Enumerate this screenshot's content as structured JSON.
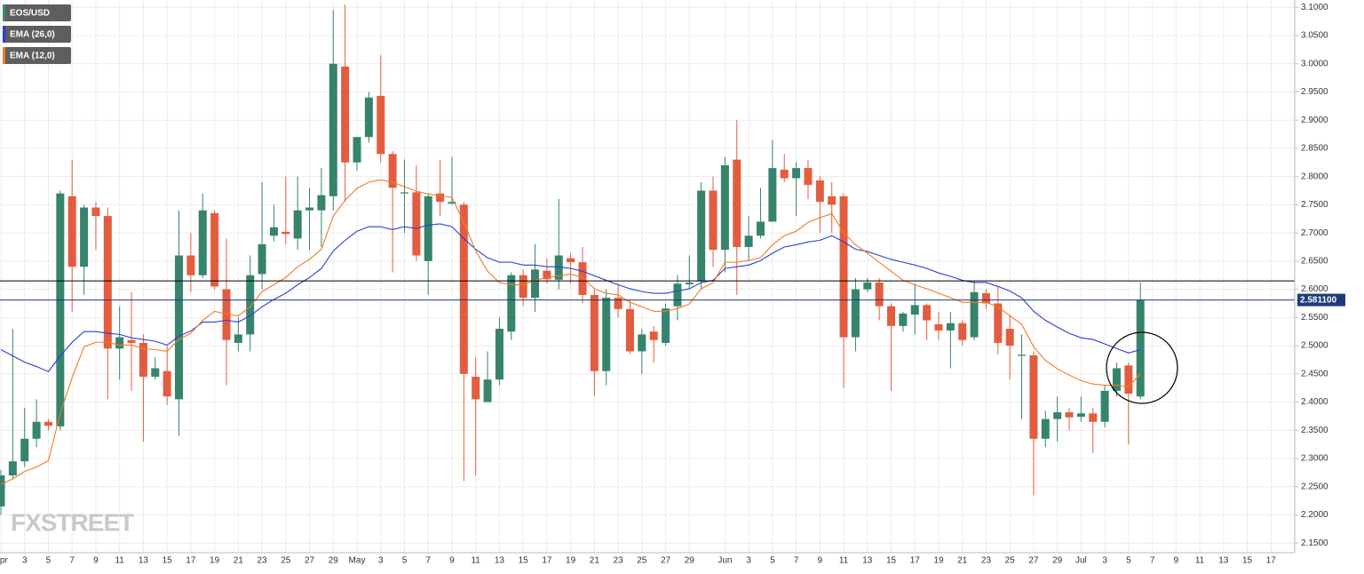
{
  "chart_data": {
    "type": "candlestick",
    "watermark": "FXSTREET",
    "categories": [
      "Apr",
      null,
      "3",
      null,
      "5",
      null,
      "7",
      null,
      "9",
      null,
      "11",
      null,
      "13",
      null,
      "15",
      null,
      "17",
      null,
      "19",
      null,
      "21",
      null,
      "23",
      null,
      "25",
      null,
      "27",
      null,
      "29",
      null,
      "May",
      null,
      "3",
      null,
      "5",
      null,
      "7",
      null,
      "9",
      null,
      "11",
      null,
      "13",
      null,
      "15",
      null,
      "17",
      null,
      "19",
      null,
      "21",
      null,
      "23",
      null,
      "25",
      null,
      "27",
      null,
      "29",
      null,
      null,
      "Jun",
      null,
      "3",
      null,
      "5",
      null,
      "7",
      null,
      "9",
      null,
      "11",
      null,
      "13",
      null,
      "15",
      null,
      "17",
      null,
      "19",
      null,
      "21",
      null,
      "23",
      null,
      "25",
      null,
      "27",
      null,
      "29",
      null,
      "Jul",
      null,
      "3",
      null,
      "5",
      null,
      "7",
      null,
      "9",
      null,
      "11",
      null,
      "13",
      null,
      "15",
      null,
      "17",
      null
    ],
    "candles": {
      "name": "EOS/USD",
      "color": "#3c8a72",
      "up_color": "#36846d",
      "down_color": "#e25d3f",
      "open": [
        2.215,
        2.27,
        2.295,
        2.335,
        2.365,
        2.357,
        2.765,
        2.64,
        2.745,
        2.73,
        2.495,
        2.51,
        2.505,
        2.445,
        2.455,
        2.405,
        2.66,
        2.625,
        2.735,
        2.6,
        2.505,
        2.52,
        2.627,
        2.695,
        2.702,
        2.69,
        2.74,
        2.74,
        2.765,
        2.995,
        2.825,
        2.87,
        2.943,
        2.84,
        2.77,
        2.772,
        2.65,
        2.77,
        2.752,
        2.75,
        2.445,
        2.4,
        2.44,
        2.525,
        2.625,
        2.585,
        2.633,
        2.617,
        2.655,
        2.648,
        2.59,
        2.455,
        2.585,
        2.565,
        2.49,
        2.525,
        2.505,
        2.57,
        2.609,
        2.615,
        2.775,
        2.67,
        2.83,
        2.675,
        2.695,
        2.72,
        2.812,
        2.797,
        2.815,
        2.793,
        2.765,
        2.765,
        2.515,
        2.6,
        2.612,
        2.57,
        2.535,
        2.555,
        2.572,
        2.538,
        2.527,
        2.54,
        2.515,
        2.593,
        2.575,
        2.53,
        2.482,
        2.483,
        2.335,
        2.37,
        2.382,
        2.374,
        2.38,
        2.365,
        2.42,
        2.465,
        2.41,
        null,
        null,
        null,
        null,
        null,
        null,
        null,
        null,
        null,
        null,
        null,
        null
      ],
      "high": [
        2.28,
        2.53,
        2.39,
        2.405,
        2.37,
        2.775,
        2.83,
        2.75,
        2.755,
        2.745,
        2.57,
        2.595,
        2.52,
        2.48,
        2.5,
        2.74,
        2.7,
        2.77,
        2.74,
        2.69,
        2.55,
        2.66,
        2.79,
        2.75,
        2.8,
        2.8,
        2.78,
        2.815,
        3.095,
        3.105,
        2.87,
        2.95,
        3.015,
        2.845,
        2.83,
        2.82,
        2.77,
        2.83,
        2.835,
        2.755,
        2.48,
        2.49,
        2.55,
        2.63,
        2.635,
        2.68,
        2.655,
        2.76,
        2.665,
        2.675,
        2.6,
        2.6,
        2.61,
        2.58,
        2.53,
        2.535,
        2.575,
        2.625,
        2.66,
        2.79,
        2.8,
        2.835,
        2.9,
        2.73,
        2.78,
        2.865,
        2.84,
        2.825,
        2.83,
        2.8,
        2.79,
        2.77,
        2.62,
        2.62,
        2.62,
        2.575,
        2.56,
        2.61,
        2.575,
        2.56,
        2.56,
        2.545,
        2.615,
        2.6,
        2.605,
        2.555,
        2.52,
        2.49,
        2.385,
        2.41,
        2.39,
        2.41,
        2.39,
        2.43,
        2.47,
        2.47,
        2.612,
        null,
        null,
        null,
        null,
        null,
        null,
        null,
        null,
        null,
        null,
        null,
        null
      ],
      "low": [
        2.2,
        2.265,
        2.285,
        2.32,
        2.35,
        2.35,
        2.56,
        2.59,
        2.67,
        2.405,
        2.44,
        2.42,
        2.33,
        2.44,
        2.395,
        2.34,
        2.595,
        2.62,
        2.6,
        2.43,
        2.49,
        2.49,
        2.6,
        2.685,
        2.68,
        2.67,
        2.67,
        2.675,
        2.74,
        2.755,
        2.81,
        2.86,
        2.825,
        2.63,
        2.7,
        2.65,
        2.59,
        2.73,
        2.75,
        2.26,
        2.27,
        2.4,
        2.43,
        2.51,
        2.57,
        2.56,
        2.61,
        2.6,
        2.61,
        2.575,
        2.41,
        2.43,
        2.55,
        2.485,
        2.45,
        2.47,
        2.5,
        2.545,
        2.6,
        2.6,
        2.64,
        2.63,
        2.59,
        2.65,
        2.69,
        2.72,
        2.79,
        2.73,
        2.76,
        2.7,
        2.7,
        2.425,
        2.49,
        2.595,
        2.545,
        2.42,
        2.525,
        2.52,
        2.51,
        2.51,
        2.46,
        2.5,
        2.51,
        2.565,
        2.485,
        2.44,
        2.37,
        2.235,
        2.32,
        2.33,
        2.35,
        2.365,
        2.31,
        2.355,
        2.41,
        2.325,
        2.405,
        null,
        null,
        null,
        null,
        null,
        null,
        null,
        null,
        null,
        null,
        null,
        null
      ],
      "close": [
        2.27,
        2.295,
        2.335,
        2.365,
        2.358,
        2.77,
        2.64,
        2.745,
        2.73,
        2.495,
        2.515,
        2.505,
        2.445,
        2.46,
        2.41,
        2.66,
        2.625,
        2.74,
        2.605,
        2.51,
        2.52,
        2.625,
        2.68,
        2.71,
        2.698,
        2.74,
        2.745,
        2.767,
        3.0,
        2.825,
        2.87,
        2.94,
        2.84,
        2.78,
        2.772,
        2.66,
        2.765,
        2.755,
        2.755,
        2.45,
        2.405,
        2.44,
        2.53,
        2.625,
        2.585,
        2.635,
        2.618,
        2.66,
        2.648,
        2.59,
        2.455,
        2.585,
        2.565,
        2.49,
        2.52,
        2.51,
        2.566,
        2.61,
        2.612,
        2.775,
        2.67,
        2.82,
        2.675,
        2.695,
        2.72,
        2.815,
        2.797,
        2.815,
        2.785,
        2.755,
        2.75,
        2.515,
        2.6,
        2.612,
        2.57,
        2.535,
        2.557,
        2.572,
        2.545,
        2.527,
        2.54,
        2.51,
        2.595,
        2.575,
        2.505,
        2.5,
        2.484,
        2.335,
        2.37,
        2.382,
        2.373,
        2.38,
        2.365,
        2.42,
        2.46,
        2.415,
        2.581,
        null,
        null,
        null,
        null,
        null,
        null,
        null,
        null,
        null,
        null,
        null,
        null
      ]
    },
    "series": [
      {
        "name": "EMA (26,0)",
        "color": "#2b3fd4",
        "values": [
          2.493,
          2.482,
          2.471,
          2.463,
          2.454,
          2.482,
          2.506,
          2.525,
          2.525,
          2.522,
          2.52,
          2.514,
          2.511,
          2.508,
          2.501,
          2.517,
          2.526,
          2.542,
          2.542,
          2.545,
          2.542,
          2.553,
          2.569,
          2.582,
          2.593,
          2.608,
          2.621,
          2.637,
          2.668,
          2.687,
          2.703,
          2.711,
          2.711,
          2.706,
          2.711,
          2.708,
          2.714,
          2.716,
          2.711,
          2.69,
          2.671,
          2.656,
          2.648,
          2.648,
          2.643,
          2.643,
          2.64,
          2.64,
          2.637,
          2.632,
          2.624,
          2.616,
          2.608,
          2.601,
          2.596,
          2.593,
          2.593,
          2.597,
          2.601,
          2.612,
          2.616,
          2.637,
          2.64,
          2.643,
          2.651,
          2.664,
          2.675,
          2.679,
          2.684,
          2.687,
          2.695,
          2.684,
          2.671,
          2.667,
          2.66,
          2.653,
          2.648,
          2.643,
          2.637,
          2.629,
          2.623,
          2.616,
          2.612,
          2.612,
          2.605,
          2.597,
          2.585,
          2.561,
          2.545,
          2.533,
          2.522,
          2.514,
          2.511,
          2.503,
          2.495,
          2.487,
          2.493,
          null,
          null,
          null,
          null,
          null,
          null,
          null,
          null,
          null,
          null,
          null,
          null
        ]
      },
      {
        "name": "EMA (12,0)",
        "color": "#f07a26",
        "values": [
          2.254,
          2.264,
          2.277,
          2.285,
          2.296,
          2.38,
          2.443,
          2.498,
          2.506,
          2.506,
          2.501,
          2.501,
          2.495,
          2.493,
          2.49,
          2.511,
          2.522,
          2.545,
          2.561,
          2.556,
          2.553,
          2.569,
          2.596,
          2.608,
          2.621,
          2.64,
          2.653,
          2.671,
          2.73,
          2.758,
          2.779,
          2.79,
          2.794,
          2.79,
          2.782,
          2.774,
          2.769,
          2.766,
          2.763,
          2.719,
          2.668,
          2.632,
          2.612,
          2.608,
          2.608,
          2.616,
          2.621,
          2.624,
          2.627,
          2.621,
          2.601,
          2.593,
          2.59,
          2.577,
          2.569,
          2.561,
          2.561,
          2.566,
          2.574,
          2.601,
          2.612,
          2.648,
          2.648,
          2.651,
          2.656,
          2.679,
          2.695,
          2.703,
          2.719,
          2.727,
          2.734,
          2.7,
          2.679,
          2.664,
          2.648,
          2.632,
          2.616,
          2.608,
          2.601,
          2.593,
          2.585,
          2.577,
          2.577,
          2.577,
          2.569,
          2.553,
          2.538,
          2.498,
          2.474,
          2.459,
          2.448,
          2.438,
          2.432,
          2.43,
          2.43,
          2.427,
          2.451,
          null,
          null,
          null,
          null,
          null,
          null,
          null,
          null,
          null,
          null,
          null,
          null
        ]
      }
    ],
    "lines": [
      {
        "value": 2.615,
        "color": "#000000"
      },
      {
        "value": 2.5811,
        "label": "2.581100",
        "color": "#1e3a7a"
      }
    ],
    "ylim": [
      2.133,
      3.113
    ],
    "yticks": [
      {
        "value": 2.15,
        "label": "2.1500"
      },
      {
        "value": 2.2,
        "label": "2.2000"
      },
      {
        "value": 2.25,
        "label": "2.2500"
      },
      {
        "value": 2.3,
        "label": "2.3000"
      },
      {
        "value": 2.35,
        "label": "2.3500"
      },
      {
        "value": 2.4,
        "label": "2.4000"
      },
      {
        "value": 2.45,
        "label": "2.4500"
      },
      {
        "value": 2.5,
        "label": "2.5000"
      },
      {
        "value": 2.55,
        "label": "2.5500"
      },
      {
        "value": 2.6,
        "label": "2.6000"
      },
      {
        "value": 2.65,
        "label": "2.6500"
      },
      {
        "value": 2.7,
        "label": "2.7000"
      },
      {
        "value": 2.75,
        "label": "2.7500"
      },
      {
        "value": 2.8,
        "label": "2.8000"
      },
      {
        "value": 2.85,
        "label": "2.8500"
      },
      {
        "value": 2.9,
        "label": "2.9000"
      },
      {
        "value": 2.95,
        "label": "2.9500"
      },
      {
        "value": 3.0,
        "label": "3.0000"
      },
      {
        "value": 3.05,
        "label": "3.0500"
      },
      {
        "value": 3.1,
        "label": "3.1000"
      }
    ],
    "grid": true
  }
}
